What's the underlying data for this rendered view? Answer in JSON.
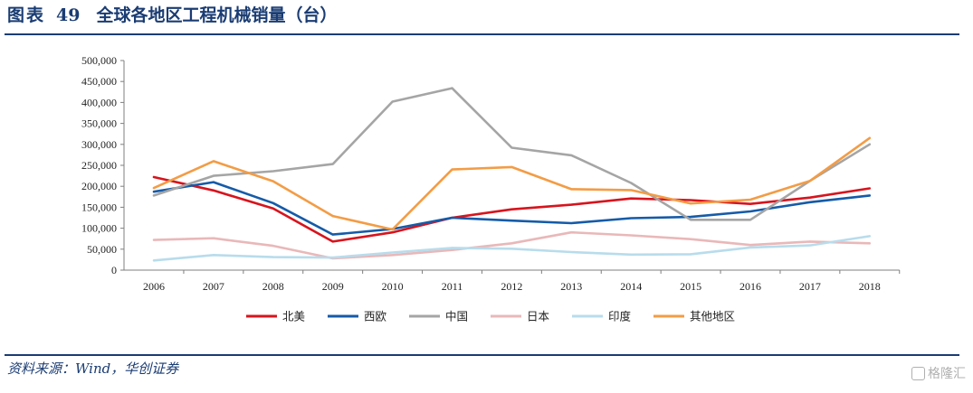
{
  "title": {
    "label": "图表",
    "number": "49",
    "text": "全球各地区工程机械销量（台）"
  },
  "source": "资料来源：Wind，华创证券",
  "watermark": "格隆汇",
  "chart_data": {
    "type": "line",
    "title": "全球各地区工程机械销量（台）",
    "categories": [
      "2006",
      "2007",
      "2008",
      "2009",
      "2010",
      "2011",
      "2012",
      "2013",
      "2014",
      "2015",
      "2016",
      "2017",
      "2018"
    ],
    "ylim": [
      0,
      500000
    ],
    "yticks": [
      0,
      50000,
      100000,
      150000,
      200000,
      250000,
      300000,
      350000,
      400000,
      450000,
      500000
    ],
    "ytick_labels": [
      "0",
      "50,000",
      "100,000",
      "150,000",
      "200,000",
      "250,000",
      "300,000",
      "350,000",
      "400,000",
      "450,000",
      "500,000"
    ],
    "grid": false,
    "legend_position": "bottom",
    "series": [
      {
        "name": "北美",
        "color": "#d7141d",
        "values": [
          222000,
          190000,
          147000,
          68000,
          90000,
          125000,
          145000,
          156000,
          171000,
          167000,
          158000,
          173000,
          195000
        ]
      },
      {
        "name": "西欧",
        "color": "#155ba8",
        "values": [
          187000,
          210000,
          160000,
          85000,
          98000,
          125000,
          118000,
          112000,
          124000,
          127000,
          140000,
          162000,
          178000
        ]
      },
      {
        "name": "中国",
        "color": "#a5a5a5",
        "values": [
          178000,
          225000,
          236000,
          253000,
          402000,
          434000,
          292000,
          274000,
          208000,
          120000,
          120000,
          213000,
          300000
        ]
      },
      {
        "name": "日本",
        "color": "#e9b8b9",
        "values": [
          72000,
          76000,
          58000,
          28000,
          36000,
          48000,
          64000,
          90000,
          83000,
          74000,
          60000,
          68000,
          64000
        ]
      },
      {
        "name": "印度",
        "color": "#b8dcec",
        "values": [
          23000,
          36000,
          31000,
          30000,
          42000,
          53000,
          51000,
          43000,
          37000,
          38000,
          54000,
          59000,
          81000
        ]
      },
      {
        "name": "其他地区",
        "color": "#f39c45",
        "values": [
          196000,
          260000,
          212000,
          129000,
          97000,
          240000,
          246000,
          193000,
          191000,
          159000,
          168000,
          213000,
          315000
        ]
      }
    ]
  }
}
